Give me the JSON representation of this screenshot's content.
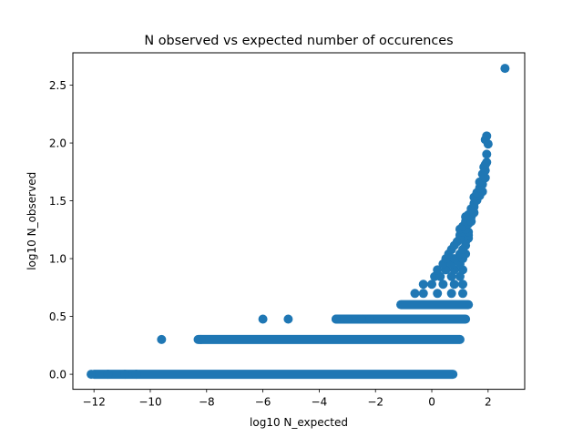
{
  "chart_data": {
    "type": "scatter",
    "title": "N observed vs expected number of occurences",
    "xlabel": "log10 N_expected",
    "ylabel": "log10 N_observed",
    "xlim": [
      -12.75,
      3.3
    ],
    "ylim": [
      -0.13,
      2.78
    ],
    "xticks": [
      -12,
      -10,
      -8,
      -6,
      -4,
      -2,
      0,
      2
    ],
    "xtick_labels": [
      "−12",
      "−10",
      "−8",
      "−6",
      "−4",
      "−2",
      "0",
      "2"
    ],
    "yticks": [
      0.0,
      0.5,
      1.0,
      1.5,
      2.0,
      2.5
    ],
    "ytick_labels": [
      "0.0",
      "0.5",
      "1.0",
      "1.5",
      "2.0",
      "2.5"
    ],
    "grid": false,
    "marker_color": "#1f77b4",
    "bands": [
      {
        "y": 0.0,
        "x_min": -12.0,
        "x_max": 0.75
      },
      {
        "y": 0.301,
        "x_min": -8.3,
        "x_max": 1.0
      },
      {
        "y": 0.477,
        "x_min": -3.4,
        "x_max": 1.2
      },
      {
        "y": 0.602,
        "x_min": -1.1,
        "x_max": 1.3
      }
    ],
    "points": [
      {
        "x": -12.1,
        "y": 0.0
      },
      {
        "x": -11.5,
        "y": 0.0
      },
      {
        "x": -10.9,
        "y": 0.0
      },
      {
        "x": -10.5,
        "y": 0.0
      },
      {
        "x": -9.6,
        "y": 0.301
      },
      {
        "x": -8.2,
        "y": 0.301
      },
      {
        "x": -6.0,
        "y": 0.477
      },
      {
        "x": -5.1,
        "y": 0.477
      },
      {
        "x": -3.4,
        "y": 0.477
      },
      {
        "x": -3.0,
        "y": 0.477
      },
      {
        "x": -2.5,
        "y": 0.477
      },
      {
        "x": -2.2,
        "y": 0.477
      },
      {
        "x": -0.6,
        "y": 0.699
      },
      {
        "x": -0.3,
        "y": 0.699
      },
      {
        "x": 0.2,
        "y": 0.699
      },
      {
        "x": 0.7,
        "y": 0.699
      },
      {
        "x": 1.1,
        "y": 0.699
      },
      {
        "x": -0.3,
        "y": 0.778
      },
      {
        "x": 0.0,
        "y": 0.778
      },
      {
        "x": 0.4,
        "y": 0.778
      },
      {
        "x": 0.8,
        "y": 0.778
      },
      {
        "x": 1.1,
        "y": 0.778
      },
      {
        "x": 0.1,
        "y": 0.845
      },
      {
        "x": 0.3,
        "y": 0.845
      },
      {
        "x": 0.7,
        "y": 0.845
      },
      {
        "x": 1.0,
        "y": 0.845
      },
      {
        "x": 0.2,
        "y": 0.903
      },
      {
        "x": 0.5,
        "y": 0.903
      },
      {
        "x": 0.8,
        "y": 0.903
      },
      {
        "x": 1.1,
        "y": 0.903
      },
      {
        "x": 0.4,
        "y": 0.954
      },
      {
        "x": 0.7,
        "y": 0.954
      },
      {
        "x": 1.0,
        "y": 0.954
      },
      {
        "x": 0.5,
        "y": 1.0
      },
      {
        "x": 0.8,
        "y": 1.0
      },
      {
        "x": 1.1,
        "y": 1.0
      },
      {
        "x": 0.6,
        "y": 1.041
      },
      {
        "x": 1.0,
        "y": 1.041
      },
      {
        "x": 1.2,
        "y": 1.041
      },
      {
        "x": 0.7,
        "y": 1.079
      },
      {
        "x": 1.1,
        "y": 1.079
      },
      {
        "x": 0.8,
        "y": 1.114
      },
      {
        "x": 1.2,
        "y": 1.114
      },
      {
        "x": 0.9,
        "y": 1.146
      },
      {
        "x": 1.2,
        "y": 1.146
      },
      {
        "x": 1.0,
        "y": 1.176
      },
      {
        "x": 1.3,
        "y": 1.176
      },
      {
        "x": 1.0,
        "y": 1.204
      },
      {
        "x": 1.3,
        "y": 1.204
      },
      {
        "x": 1.1,
        "y": 1.23
      },
      {
        "x": 1.3,
        "y": 1.23
      },
      {
        "x": 1.0,
        "y": 1.255
      },
      {
        "x": 1.2,
        "y": 1.255
      },
      {
        "x": 1.1,
        "y": 1.279
      },
      {
        "x": 1.3,
        "y": 1.301
      },
      {
        "x": 1.2,
        "y": 1.322
      },
      {
        "x": 1.4,
        "y": 1.322
      },
      {
        "x": 1.2,
        "y": 1.362
      },
      {
        "x": 1.4,
        "y": 1.362
      },
      {
        "x": 1.3,
        "y": 1.38
      },
      {
        "x": 1.5,
        "y": 1.398
      },
      {
        "x": 1.4,
        "y": 1.431
      },
      {
        "x": 1.5,
        "y": 1.447
      },
      {
        "x": 1.5,
        "y": 1.477
      },
      {
        "x": 1.6,
        "y": 1.505
      },
      {
        "x": 1.5,
        "y": 1.531
      },
      {
        "x": 1.7,
        "y": 1.544
      },
      {
        "x": 1.6,
        "y": 1.57
      },
      {
        "x": 1.8,
        "y": 1.58
      },
      {
        "x": 1.7,
        "y": 1.613
      },
      {
        "x": 1.8,
        "y": 1.643
      },
      {
        "x": 1.7,
        "y": 1.663
      },
      {
        "x": 1.9,
        "y": 1.699
      },
      {
        "x": 1.8,
        "y": 1.732
      },
      {
        "x": 1.9,
        "y": 1.763
      },
      {
        "x": 1.85,
        "y": 1.792
      },
      {
        "x": 1.9,
        "y": 1.813
      },
      {
        "x": 1.95,
        "y": 1.833
      },
      {
        "x": 1.95,
        "y": 1.903
      },
      {
        "x": 2.0,
        "y": 1.991
      },
      {
        "x": 1.9,
        "y": 2.029
      },
      {
        "x": 1.95,
        "y": 2.061
      },
      {
        "x": 2.6,
        "y": 2.645
      }
    ]
  }
}
